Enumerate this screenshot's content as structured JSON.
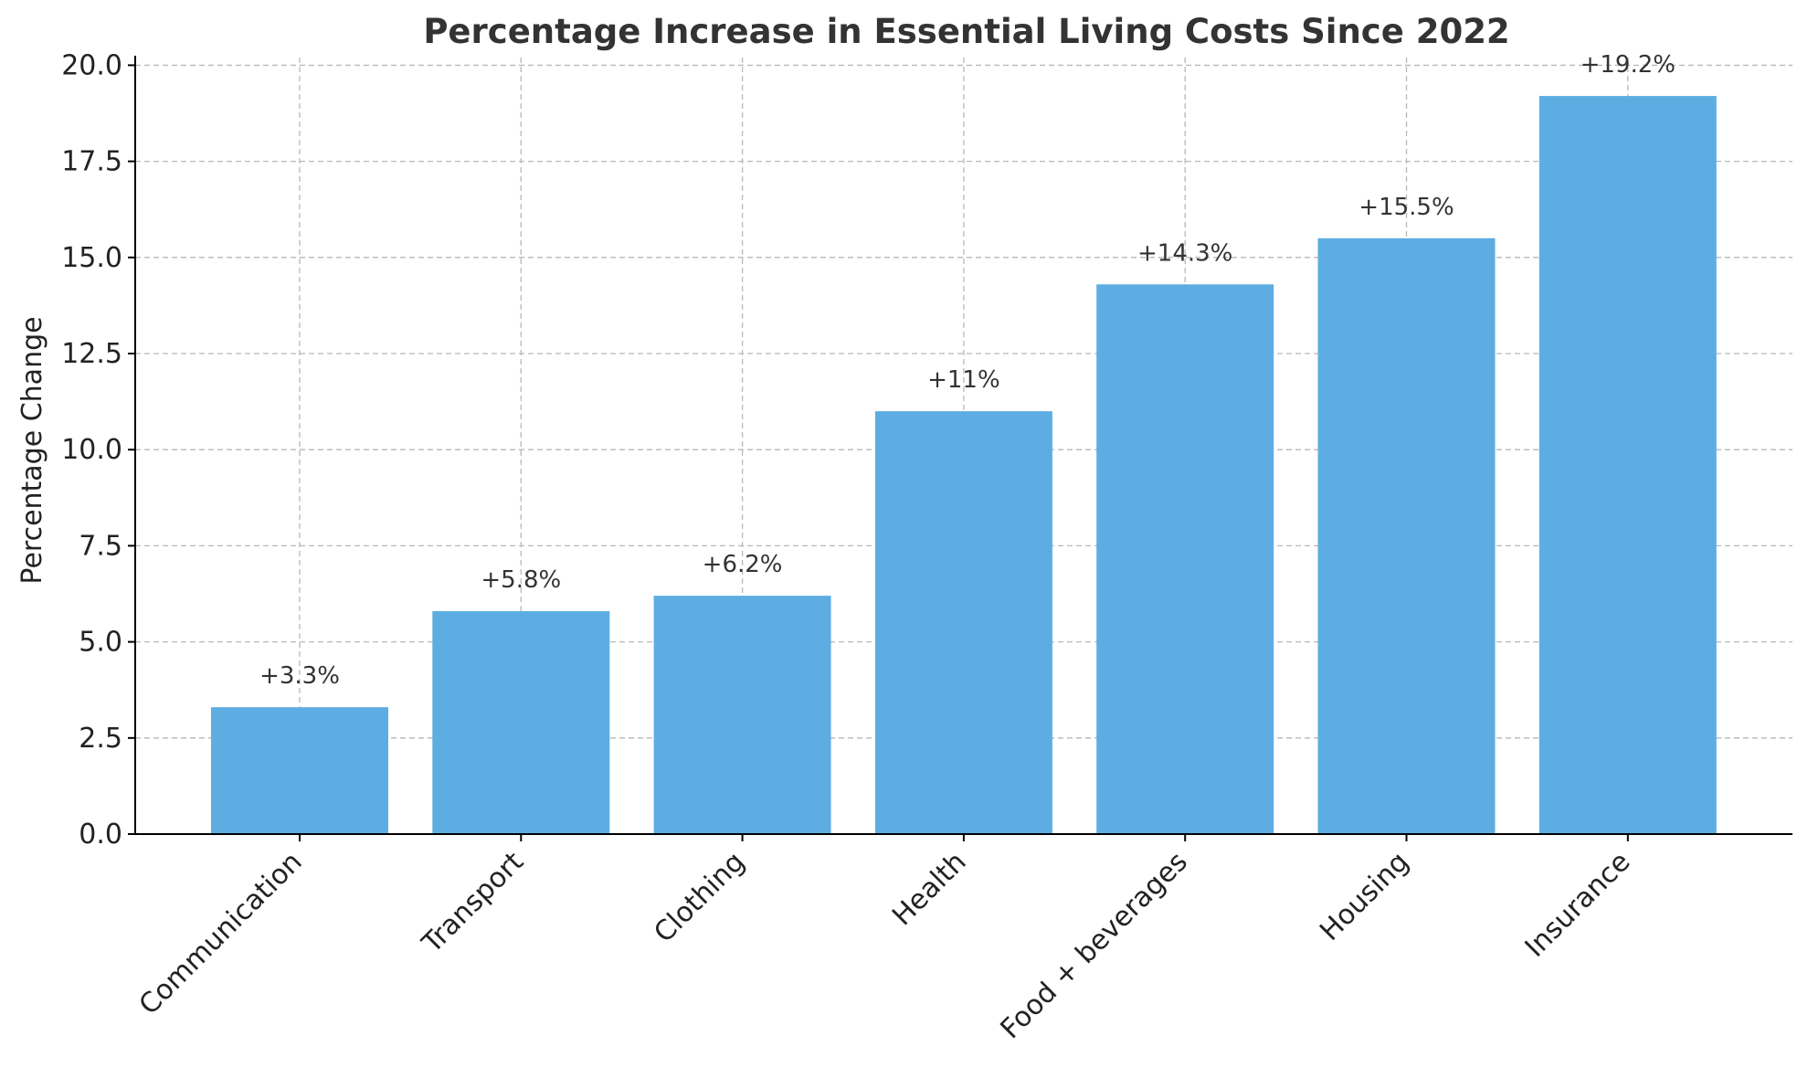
{
  "chart_data": {
    "type": "bar",
    "title": "Percentage Increase in Essential Living Costs Since 2022",
    "xlabel": "",
    "ylabel": "Percentage Change",
    "categories": [
      "Communication",
      "Transport",
      "Clothing",
      "Health",
      "Food + beverages",
      "Housing",
      "Insurance"
    ],
    "values": [
      3.3,
      5.8,
      6.2,
      11,
      14.3,
      15.5,
      19.2
    ],
    "data_labels": [
      "+3.3%",
      "+5.8%",
      "+6.2%",
      "+11%",
      "+14.3%",
      "+15.5%",
      "+19.2%"
    ],
    "y_ticks": [
      0.0,
      2.5,
      5.0,
      7.5,
      10.0,
      12.5,
      15.0,
      17.5,
      20.0
    ],
    "y_tick_labels": [
      "0.0",
      "2.5",
      "5.0",
      "7.5",
      "10.0",
      "12.5",
      "15.0",
      "17.5",
      "20.0"
    ],
    "ylim": [
      0,
      20.2
    ],
    "grid": true,
    "bar_color": "#5DADE2"
  }
}
